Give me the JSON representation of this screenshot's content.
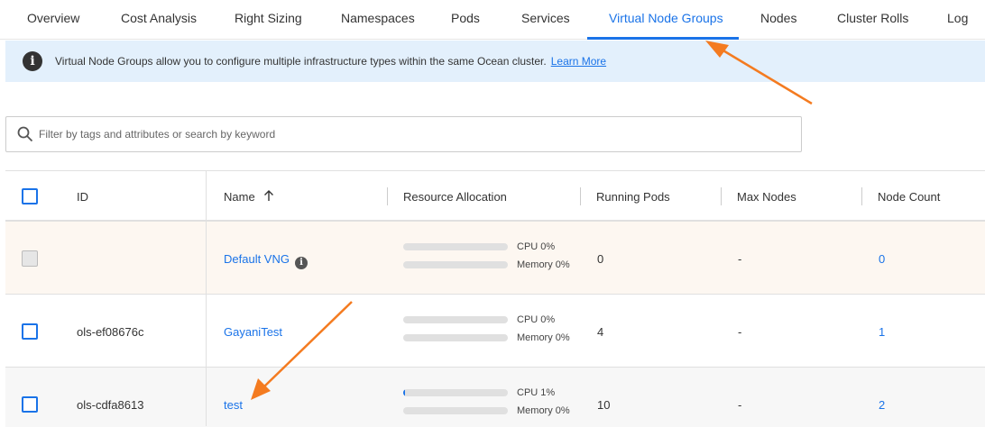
{
  "tabs": [
    "Overview",
    "Cost Analysis",
    "Right Sizing",
    "Namespaces",
    "Pods",
    "Services",
    "Virtual Node Groups",
    "Nodes",
    "Cluster Rolls",
    "Log"
  ],
  "active_tab": "Virtual Node Groups",
  "banner": {
    "icon": "info-icon",
    "text": "Virtual Node Groups allow you to configure multiple infrastructure types within the same Ocean cluster.",
    "link": "Learn More"
  },
  "search": {
    "icon": "search-icon",
    "placeholder": "Filter by tags and attributes or search by keyword",
    "value": ""
  },
  "table": {
    "headers": {
      "id": "ID",
      "name": "Name",
      "sort_icon": "arrow-up-icon",
      "resource": "Resource Allocation",
      "running": "Running Pods",
      "max": "Max Nodes",
      "count": "Node Count"
    },
    "rows": [
      {
        "id": "",
        "name": "Default VNG",
        "info": "i",
        "cpu_label": "CPU 0%",
        "cpu": 0,
        "mem_label": "Memory 0%",
        "mem": 0,
        "running": "0",
        "max": "-",
        "count": "0",
        "disabled": true
      },
      {
        "id": "ols-ef08676c",
        "name": "GayaniTest",
        "cpu_label": "CPU 0%",
        "cpu": 0,
        "mem_label": "Memory 0%",
        "mem": 0,
        "running": "4",
        "max": "-",
        "count": "1"
      },
      {
        "id": "ols-cdfa8613",
        "name": "test",
        "cpu_label": "CPU 1%",
        "cpu": 1,
        "mem_label": "Memory 0%",
        "mem": 0,
        "running": "10",
        "max": "-",
        "count": "2"
      }
    ]
  },
  "colors": {
    "accent": "#1a73e8",
    "annotation_arrow": "#f47b20",
    "default_row_bg": "#fdf7f1"
  }
}
